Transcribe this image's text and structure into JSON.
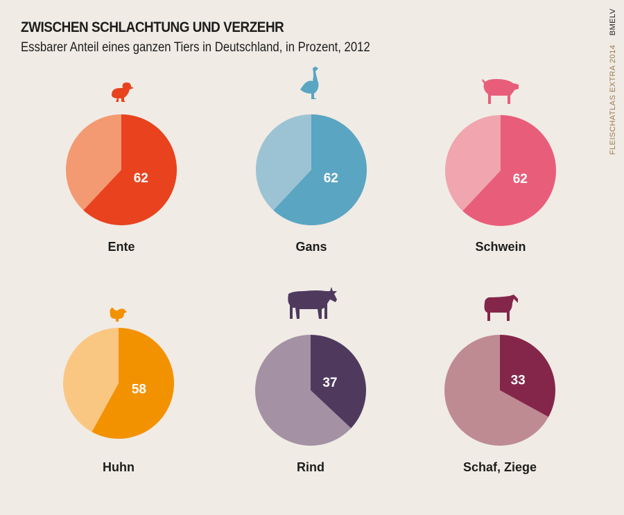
{
  "title": "ZWISCHEN SCHLACHTUNG UND VERZEHR",
  "subtitle": "Essbarer Anteil eines ganzen Tiers in Deutschland, in Prozent, 2012",
  "source": "FLEISCHATLAS EXTRA 2014",
  "publisher": "BMELV",
  "chart_data": {
    "type": "pie",
    "unit": "Prozent",
    "charts": [
      {
        "label": "Ente",
        "value": 62,
        "icon": "duck-icon",
        "color": "#e8431e",
        "rest_color": "#f39a72"
      },
      {
        "label": "Gans",
        "value": 62,
        "icon": "goose-icon",
        "color": "#5aa5c2",
        "rest_color": "#9cc3d4"
      },
      {
        "label": "Schwein",
        "value": 62,
        "icon": "pig-icon",
        "color": "#e85e7a",
        "rest_color": "#f1a5ae"
      },
      {
        "label": "Huhn",
        "value": 58,
        "icon": "chicken-icon",
        "color": "#f39200",
        "rest_color": "#fac783"
      },
      {
        "label": "Rind",
        "value": 37,
        "icon": "cow-icon",
        "color": "#4f3a5e",
        "rest_color": "#a491a3"
      },
      {
        "label": "Schaf, Ziege",
        "value": 33,
        "icon": "sheep-icon",
        "color": "#84264a",
        "rest_color": "#bf8b93"
      }
    ]
  }
}
